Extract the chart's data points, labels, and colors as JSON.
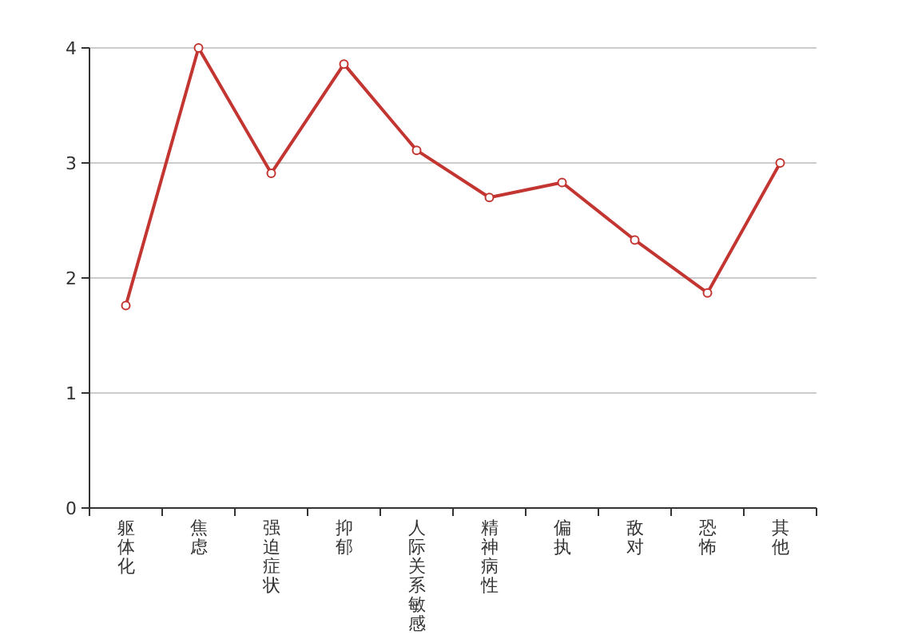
{
  "chart_data": {
    "type": "line",
    "categories": [
      "躯体化",
      "焦虑",
      "强迫症状",
      "抑郁",
      "人际关系敏感",
      "精神病性",
      "偏执",
      "敌对",
      "恐怖",
      "其他"
    ],
    "series": [
      {
        "color": "#c23531",
        "values": [
          1.76,
          4.0,
          2.91,
          3.86,
          3.11,
          2.7,
          2.83,
          2.33,
          1.87,
          3.0
        ]
      }
    ],
    "ylim": [
      0,
      4
    ],
    "yticks": [
      0,
      1,
      2,
      3,
      4
    ],
    "grid": "y",
    "marker": "circle",
    "line_style": "solid"
  }
}
